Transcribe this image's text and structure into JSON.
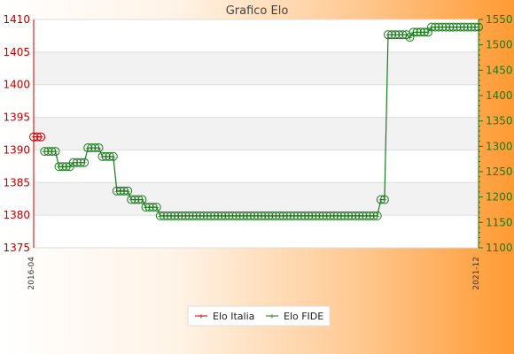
{
  "chart_data": {
    "type": "line",
    "title": "Grafico Elo",
    "left_axis": {
      "ylim": [
        1375,
        1410
      ],
      "ticks": [
        1375,
        1380,
        1385,
        1390,
        1395,
        1400,
        1405,
        1410
      ],
      "color": "#cc0000"
    },
    "right_axis": {
      "ylim": [
        1100,
        1550
      ],
      "ticks": [
        1100,
        1150,
        1200,
        1250,
        1300,
        1350,
        1400,
        1450,
        1500,
        1550
      ],
      "color": "#1a7a1a"
    },
    "x_start_label": "2016-04",
    "x_end_label": "2021-12",
    "series": [
      {
        "name": "Elo Italia",
        "axis": "left",
        "color": "#cc0000",
        "x": [
          0,
          1,
          2
        ],
        "values": [
          1392,
          1392,
          1392
        ]
      },
      {
        "name": "Elo FIDE",
        "axis": "right",
        "color": "#1a7a1a",
        "x": [
          3,
          4,
          5,
          6,
          7,
          8,
          9,
          10,
          11,
          12,
          13,
          14,
          15,
          16,
          17,
          18,
          19,
          20,
          21,
          22,
          23,
          24,
          25,
          26,
          27,
          28,
          29,
          30,
          31,
          32,
          33,
          34,
          35,
          36,
          37,
          38,
          39,
          40,
          41,
          42,
          43,
          44,
          45,
          46,
          47,
          48,
          49,
          50,
          51,
          52,
          53,
          54,
          55,
          56,
          57,
          58,
          59,
          60,
          61,
          62,
          63,
          64,
          65,
          66,
          67,
          68,
          69,
          70,
          71,
          72,
          73,
          74,
          75,
          76,
          77,
          78,
          79,
          80,
          81,
          82,
          83,
          84,
          85,
          86,
          87,
          88,
          89,
          90,
          91,
          92,
          93,
          94,
          95,
          96,
          97,
          98,
          99,
          100,
          101,
          102,
          103,
          104,
          105,
          106,
          107,
          108,
          109,
          110,
          111,
          112,
          113,
          114,
          115,
          116,
          117,
          118,
          119,
          120,
          121,
          122,
          123
        ],
        "values": [
          1290,
          1290,
          1290,
          1290,
          1260,
          1260,
          1260,
          1260,
          1268,
          1268,
          1268,
          1268,
          1297,
          1297,
          1297,
          1297,
          1280,
          1280,
          1280,
          1280,
          1212,
          1212,
          1212,
          1212,
          1195,
          1195,
          1195,
          1195,
          1180,
          1180,
          1180,
          1180,
          1163,
          1163,
          1163,
          1163,
          1163,
          1163,
          1163,
          1163,
          1163,
          1163,
          1163,
          1163,
          1163,
          1163,
          1163,
          1163,
          1163,
          1163,
          1163,
          1163,
          1163,
          1163,
          1163,
          1163,
          1163,
          1163,
          1163,
          1163,
          1163,
          1163,
          1163,
          1163,
          1163,
          1163,
          1163,
          1163,
          1163,
          1163,
          1163,
          1163,
          1163,
          1163,
          1163,
          1163,
          1163,
          1163,
          1163,
          1163,
          1163,
          1163,
          1163,
          1163,
          1163,
          1163,
          1163,
          1163,
          1163,
          1163,
          1163,
          1163,
          1163,
          1195,
          1195,
          1520,
          1520,
          1520,
          1520,
          1520,
          1520,
          1515,
          1525,
          1525,
          1525,
          1525,
          1525,
          1535,
          1535,
          1535,
          1535,
          1535,
          1535,
          1535,
          1535,
          1535,
          1535,
          1535,
          1535,
          1535,
          1535
        ]
      }
    ],
    "legend": {
      "position": "bottom-center",
      "entries": [
        "Elo Italia",
        "Elo FIDE"
      ]
    },
    "grid": true
  }
}
